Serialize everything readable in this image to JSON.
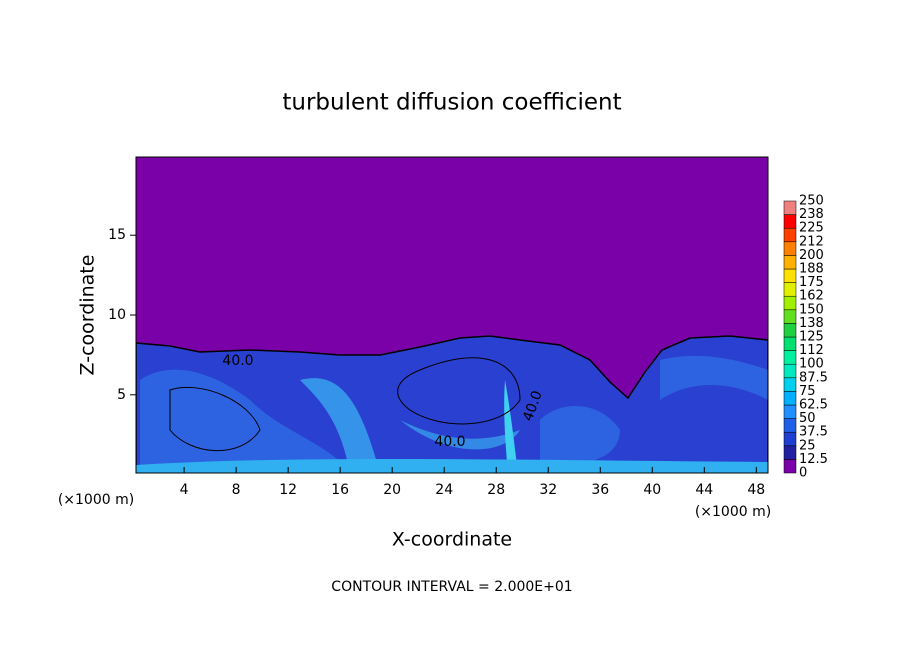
{
  "chart_data": {
    "type": "heatmap",
    "title": "turbulent diffusion coefficient",
    "x_label": "X-coordinate",
    "y_label": "Z-coordinate",
    "x_unit_left": "(×1000 m)",
    "x_unit_right": "(×1000 m)",
    "footer": "CONTOUR INTERVAL = 2.000E+01",
    "annotations": [
      "40.0",
      "40.0",
      "40.0"
    ],
    "xlim": [
      0.3,
      48.9
    ],
    "xticks": [
      4,
      8,
      12,
      16,
      20,
      24,
      28,
      32,
      36,
      40,
      44,
      48
    ],
    "ylim": [
      0.1,
      19.9
    ],
    "yticks": [
      5,
      10,
      15
    ],
    "colorbar": {
      "levels": [
        0,
        12.5,
        25,
        37.5,
        50,
        62.5,
        75,
        87.5,
        100,
        112,
        125,
        138,
        150,
        162,
        175,
        188,
        200,
        212,
        225,
        238,
        250
      ],
      "colors": [
        "#7a00a8",
        "#2020a0",
        "#1f3fd0",
        "#2060e8",
        "#1e90ff",
        "#00b0ff",
        "#00d0f0",
        "#00e8c0",
        "#00f0a0",
        "#00e070",
        "#20d040",
        "#60e020",
        "#a0f000",
        "#e0f000",
        "#ffe000",
        "#ffb000",
        "#ff8000",
        "#ff4000",
        "#ff0000",
        "#f08080"
      ]
    }
  }
}
